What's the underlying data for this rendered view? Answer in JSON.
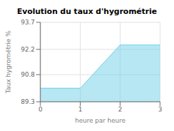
{
  "chart_data": {
    "type": "area",
    "title": "Evolution du taux d'hygrométrie",
    "xlabel": "heure par heure",
    "ylabel": "Taux hygrométrie %",
    "x": [
      0,
      1,
      2,
      3
    ],
    "values": [
      90.05,
      90.05,
      92.45,
      92.45
    ],
    "xlim": [
      0,
      3
    ],
    "ylim": [
      89.3,
      93.7
    ],
    "xticks": [
      0,
      1,
      2,
      3
    ],
    "yticks": [
      89.3,
      90.8,
      92.2,
      93.7
    ],
    "color": "#6dd0e8",
    "grid": true
  }
}
